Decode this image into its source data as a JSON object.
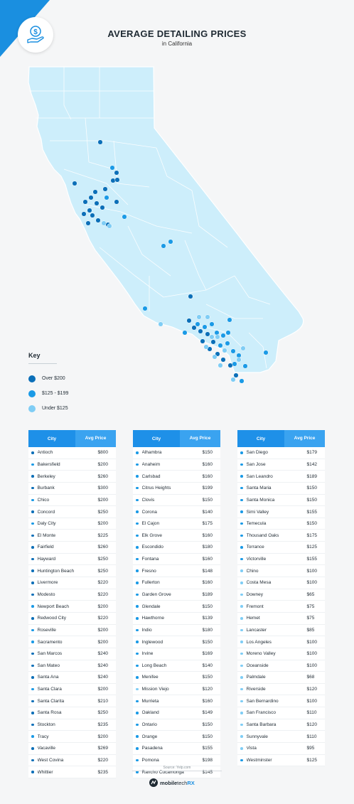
{
  "header": {
    "title": "AVERAGE DETAILING PRICES",
    "subtitle": "in California",
    "icon": "money-hand-icon"
  },
  "key": {
    "title": "Key",
    "items": [
      {
        "label": "Over $200",
        "color": "#0b6fb8"
      },
      {
        "label": "$125 - $199",
        "color": "#1a9ae6"
      },
      {
        "label": "Under $125",
        "color": "#7fcdf5"
      }
    ]
  },
  "chart_data": {
    "type": "table",
    "columns": [
      "City",
      "Avg Price"
    ],
    "tables": [
      {
        "rows": [
          [
            "Antioch",
            "$800"
          ],
          [
            "Bakersfield",
            "$200"
          ],
          [
            "Berkeley",
            "$260"
          ],
          [
            "Burbank",
            "$300"
          ],
          [
            "Chico",
            "$200"
          ],
          [
            "Concord",
            "$250"
          ],
          [
            "Daly City",
            "$200"
          ],
          [
            "El Monte",
            "$225"
          ],
          [
            "Fairfield",
            "$260"
          ],
          [
            "Hayward",
            "$250"
          ],
          [
            "Huntington Beach",
            "$250"
          ],
          [
            "Livermore",
            "$220"
          ],
          [
            "Modesto",
            "$220"
          ],
          [
            "Newport Beach",
            "$200"
          ],
          [
            "Redwood City",
            "$220"
          ],
          [
            "Roseville",
            "$200"
          ],
          [
            "Sacramento",
            "$200"
          ],
          [
            "San Marcos",
            "$240"
          ],
          [
            "San Mateo",
            "$240"
          ],
          [
            "Santa Ana",
            "$240"
          ],
          [
            "Santa Clara",
            "$200"
          ],
          [
            "Santa Clarita",
            "$210"
          ],
          [
            "Santa Rosa",
            "$250"
          ],
          [
            "Stockton",
            "$235"
          ],
          [
            "Tracy",
            "$200"
          ],
          [
            "Vacaville",
            "$269"
          ],
          [
            "West Covina",
            "$220"
          ],
          [
            "Whittier",
            "$235"
          ]
        ]
      },
      {
        "rows": [
          [
            "Alhambra",
            "$150"
          ],
          [
            "Anaheim",
            "$160"
          ],
          [
            "Carlsbad",
            "$160"
          ],
          [
            "Citrus Heights",
            "$199"
          ],
          [
            "Clovis",
            "$150"
          ],
          [
            "Corona",
            "$140"
          ],
          [
            "El Cajon",
            "$175"
          ],
          [
            "Elk Grove",
            "$160"
          ],
          [
            "Escondido",
            "$180"
          ],
          [
            "Fontana",
            "$160"
          ],
          [
            "Fresno",
            "$148"
          ],
          [
            "Fullerton",
            "$160"
          ],
          [
            "Garden Grove",
            "$189"
          ],
          [
            "Glendale",
            "$150"
          ],
          [
            "Hawthorne",
            "$139"
          ],
          [
            "Indio",
            "$180"
          ],
          [
            "Inglewood",
            "$150"
          ],
          [
            "Irvine",
            "$169"
          ],
          [
            "Long Beach",
            "$140"
          ],
          [
            "Menifee",
            "$150"
          ],
          [
            "Mission Viejo",
            "$120"
          ],
          [
            "Murrieta",
            "$160"
          ],
          [
            "Oakland",
            "$149"
          ],
          [
            "Ontario",
            "$150"
          ],
          [
            "Orange",
            "$150"
          ],
          [
            "Pasadena",
            "$155"
          ],
          [
            "Pomona",
            "$198"
          ],
          [
            "Rancho Cucamonga",
            "$145"
          ]
        ]
      },
      {
        "rows": [
          [
            "San Diego",
            "$179"
          ],
          [
            "San Jose",
            "$142"
          ],
          [
            "San Leandro",
            "$189"
          ],
          [
            "Santa Maria",
            "$150"
          ],
          [
            "Santa Monica",
            "$150"
          ],
          [
            "Simi Valley",
            "$155"
          ],
          [
            "Temecula",
            "$150"
          ],
          [
            "Thousand Oaks",
            "$175"
          ],
          [
            "Torrance",
            "$125"
          ],
          [
            "Victorville",
            "$155"
          ],
          [
            "Chino",
            "$100"
          ],
          [
            "Costa Mesa",
            "$100"
          ],
          [
            "Downey",
            "$65"
          ],
          [
            "Fremont",
            "$75"
          ],
          [
            "Hemet",
            "$75"
          ],
          [
            "Lancaster",
            "$85"
          ],
          [
            "Los Angeles",
            "$100"
          ],
          [
            "Moreno Valley",
            "$100"
          ],
          [
            "Oceanside",
            "$100"
          ],
          [
            "Palmdale",
            "$68"
          ],
          [
            "Riverside",
            "$120"
          ],
          [
            "San Bernardino",
            "$100"
          ],
          [
            "San Francisco",
            "$110"
          ],
          [
            "Santa Barbara",
            "$120"
          ],
          [
            "Sunnyvale",
            "$110"
          ],
          [
            "Vista",
            "$95"
          ],
          [
            "Westminster",
            "$125"
          ]
        ]
      }
    ]
  },
  "footer": {
    "source": "Source: Yelp.com",
    "brand_a": "mobile",
    "brand_b": "tech",
    "brand_c": "RX"
  }
}
